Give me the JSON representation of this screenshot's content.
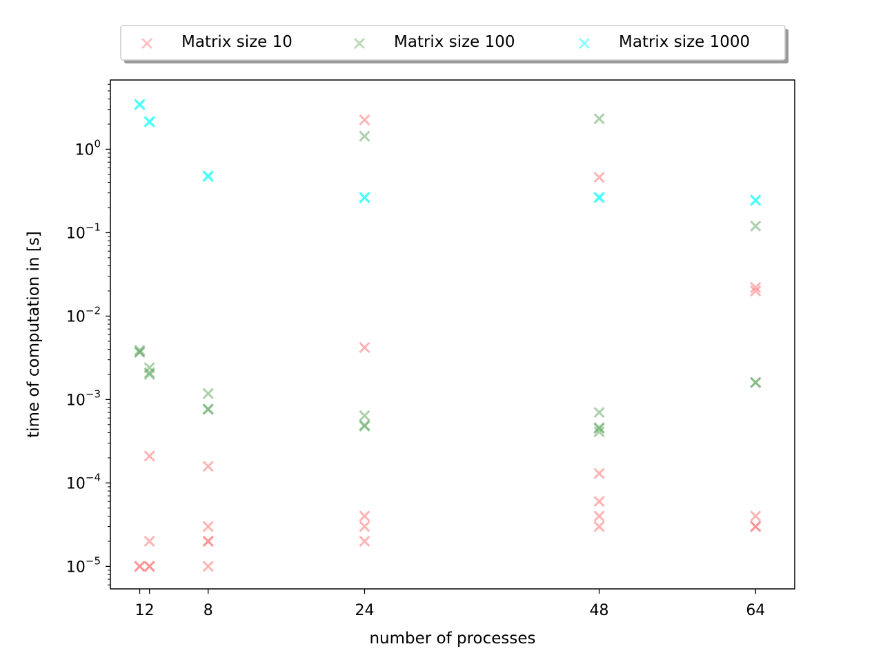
{
  "chart_data": {
    "type": "scatter",
    "title": "",
    "xlabel": "number of processes",
    "ylabel": "time of computation in [s]",
    "yscale": "log",
    "xlim": [
      -2,
      68
    ],
    "ylim_log10": [
      -5.27,
      0.83
    ],
    "x_ticks": [
      1,
      2,
      8,
      24,
      48,
      64
    ],
    "y_ticks": [
      {
        "exp": -5,
        "label": "10",
        "sup": "−5"
      },
      {
        "exp": -4,
        "label": "10",
        "sup": "−4"
      },
      {
        "exp": -3,
        "label": "10",
        "sup": "−3"
      },
      {
        "exp": -2,
        "label": "10",
        "sup": "−2"
      },
      {
        "exp": -1,
        "label": "10",
        "sup": "−1"
      },
      {
        "exp": 0,
        "label": "10",
        "sup": "0"
      }
    ],
    "grid": false,
    "legend": {
      "placement": "top-center, above plot",
      "shadow": true
    },
    "series": [
      {
        "name": "Matrix size 10",
        "color": "#ff7777",
        "marker": "x",
        "alpha": 0.55,
        "points": [
          [
            1,
            1e-05
          ],
          [
            1,
            1e-05
          ],
          [
            2,
            1e-05
          ],
          [
            2,
            1e-05
          ],
          [
            2,
            2e-05
          ],
          [
            2,
            0.00021
          ],
          [
            8,
            1e-05
          ],
          [
            8,
            2e-05
          ],
          [
            8,
            2e-05
          ],
          [
            8,
            3e-05
          ],
          [
            8,
            0.000158
          ],
          [
            24,
            2e-05
          ],
          [
            24,
            3e-05
          ],
          [
            24,
            4e-05
          ],
          [
            24,
            0.0042
          ],
          [
            24,
            2.25
          ],
          [
            48,
            3e-05
          ],
          [
            48,
            4e-05
          ],
          [
            48,
            6e-05
          ],
          [
            48,
            0.00013
          ],
          [
            48,
            0.46
          ],
          [
            64,
            3e-05
          ],
          [
            64,
            3e-05
          ],
          [
            64,
            4e-05
          ],
          [
            64,
            0.02
          ],
          [
            64,
            0.022
          ]
        ]
      },
      {
        "name": "Matrix size 100",
        "color": "#66aa66",
        "marker": "x",
        "alpha": 0.55,
        "points": [
          [
            1,
            0.0037
          ],
          [
            1,
            0.0039
          ],
          [
            1,
            0.0037
          ],
          [
            2,
            0.0024
          ],
          [
            2,
            0.002
          ],
          [
            2,
            0.0021
          ],
          [
            8,
            0.00118
          ],
          [
            8,
            0.00076
          ],
          [
            8,
            0.00077
          ],
          [
            24,
            0.00064
          ],
          [
            24,
            0.00048
          ],
          [
            24,
            0.00049
          ],
          [
            24,
            1.43
          ],
          [
            48,
            0.0007
          ],
          [
            48,
            0.00046
          ],
          [
            48,
            0.00041
          ],
          [
            48,
            0.00045
          ],
          [
            48,
            2.32
          ],
          [
            64,
            0.0016
          ],
          [
            64,
            0.0016
          ],
          [
            64,
            0.12
          ]
        ]
      },
      {
        "name": "Matrix size 1000",
        "color": "#33ffff",
        "marker": "x",
        "alpha": 0.7,
        "points": [
          [
            1,
            3.45
          ],
          [
            1,
            3.42
          ],
          [
            2,
            2.12
          ],
          [
            2,
            2.15
          ],
          [
            8,
            0.48
          ],
          [
            8,
            0.47
          ],
          [
            24,
            0.262
          ],
          [
            24,
            0.265
          ],
          [
            48,
            0.262
          ],
          [
            48,
            0.266
          ],
          [
            64,
            0.245
          ],
          [
            64,
            0.244
          ]
        ]
      }
    ]
  }
}
